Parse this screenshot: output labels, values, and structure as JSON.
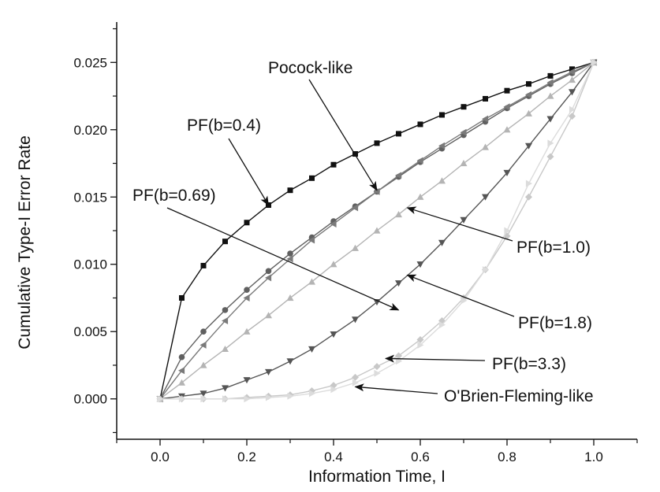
{
  "chart_data": {
    "type": "line",
    "xlabel": "Information Time, I",
    "ylabel": "Cumulative Type-I Error Rate",
    "xlim": [
      -0.1,
      1.1
    ],
    "ylim": [
      -0.003,
      0.028
    ],
    "xticks": [
      0.0,
      0.2,
      0.4,
      0.6,
      0.8,
      1.0
    ],
    "xtick_labels": [
      "0.0",
      "0.2",
      "0.4",
      "0.6",
      "0.8",
      "1.0"
    ],
    "yticks": [
      0.0,
      0.005,
      0.01,
      0.015,
      0.02,
      0.025
    ],
    "ytick_labels": [
      "0.000",
      "0.005",
      "0.010",
      "0.015",
      "0.020",
      "0.025"
    ],
    "x": [
      0.0,
      0.05,
      0.1,
      0.15,
      0.2,
      0.25,
      0.3,
      0.35,
      0.4,
      0.45,
      0.5,
      0.55,
      0.6,
      0.65,
      0.7,
      0.75,
      0.8,
      0.85,
      0.9,
      0.95,
      1.0
    ],
    "grid": false,
    "legend": "none",
    "series": [
      {
        "marker": "square",
        "color": "#111111",
        "values": [
          0.0,
          0.0075,
          0.0099,
          0.0117,
          0.0131,
          0.0144,
          0.0155,
          0.0164,
          0.0174,
          0.0182,
          0.019,
          0.0197,
          0.0204,
          0.0211,
          0.0217,
          0.0223,
          0.0229,
          0.0234,
          0.024,
          0.0245,
          0.025
        ]
      },
      {
        "marker": "circle",
        "color": "#606060",
        "values": [
          0.0,
          0.0031,
          0.005,
          0.0066,
          0.0081,
          0.0095,
          0.0108,
          0.012,
          0.0132,
          0.0143,
          0.0154,
          0.0165,
          0.0176,
          0.0186,
          0.0196,
          0.0206,
          0.0216,
          0.0225,
          0.0234,
          0.0242,
          0.025
        ]
      },
      {
        "marker": "triangle-left",
        "color": "#7a7a7a",
        "values": [
          0.0,
          0.0021,
          0.004,
          0.0058,
          0.0075,
          0.009,
          0.0104,
          0.0118,
          0.013,
          0.0142,
          0.0154,
          0.0166,
          0.0177,
          0.0188,
          0.0198,
          0.0208,
          0.0217,
          0.0226,
          0.0235,
          0.0243,
          0.025
        ]
      },
      {
        "marker": "triangle-up",
        "color": "#b4b4b4",
        "values": [
          0.0,
          0.0012,
          0.0025,
          0.0037,
          0.005,
          0.0062,
          0.0075,
          0.0087,
          0.01,
          0.0112,
          0.0125,
          0.0137,
          0.015,
          0.0162,
          0.0175,
          0.0187,
          0.02,
          0.0212,
          0.0225,
          0.0237,
          0.025
        ]
      },
      {
        "marker": "triangle-down",
        "color": "#555555",
        "values": [
          0.0,
          0.0002,
          0.0004,
          0.0008,
          0.0014,
          0.002,
          0.0028,
          0.0037,
          0.0048,
          0.0059,
          0.0072,
          0.0086,
          0.01,
          0.0116,
          0.0133,
          0.015,
          0.0168,
          0.0188,
          0.0208,
          0.0228,
          0.025
        ]
      },
      {
        "marker": "diamond",
        "color": "#c8c8c8",
        "values": [
          0.0,
          0.0,
          0.0,
          0.0,
          0.0001,
          0.0002,
          0.0003,
          0.0006,
          0.001,
          0.0016,
          0.0024,
          0.0032,
          0.0044,
          0.0058,
          0.0075,
          0.0096,
          0.0121,
          0.015,
          0.018,
          0.021,
          0.025
        ]
      },
      {
        "marker": "triangle-right",
        "color": "#dcdcdc",
        "values": [
          0.0,
          0.0,
          0.0,
          0.0,
          0.0,
          0.0001,
          0.0002,
          0.0004,
          0.0007,
          0.0012,
          0.0019,
          0.0028,
          0.004,
          0.0055,
          0.0073,
          0.0096,
          0.0125,
          0.016,
          0.019,
          0.0215,
          0.025
        ]
      }
    ],
    "annotations": [
      {
        "text": "Pocock-like",
        "arrow_to": [
          0.5,
          0.0155
        ]
      },
      {
        "text": "PF(b=0.4)",
        "arrow_to": [
          0.25,
          0.0144
        ]
      },
      {
        "text": "PF(b=0.69)",
        "arrow_to": [
          0.55,
          0.0066
        ]
      },
      {
        "text": "PF(b=1.0)",
        "arrow_to": [
          0.57,
          0.0142
        ]
      },
      {
        "text": "PF(b=1.8)",
        "arrow_to": [
          0.57,
          0.0092
        ]
      },
      {
        "text": "PF(b=3.3)",
        "arrow_to": [
          0.52,
          0.003
        ]
      },
      {
        "text": "O'Brien-Fleming-like",
        "arrow_to": [
          0.45,
          0.0009
        ]
      }
    ]
  }
}
